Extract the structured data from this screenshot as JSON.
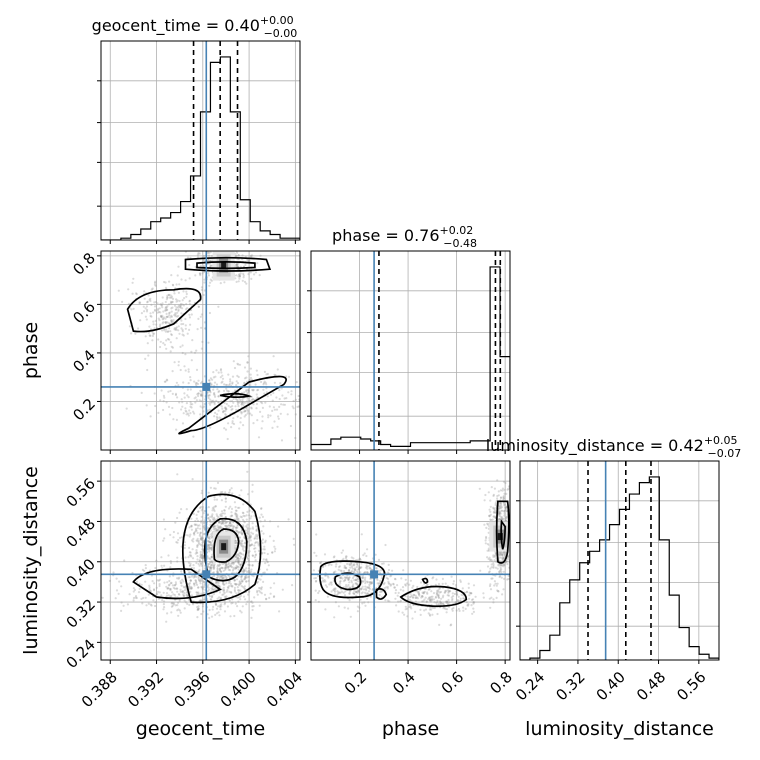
{
  "chart_data": {
    "type": "corner",
    "parameters": [
      {
        "name": "geocent_time",
        "label": "geocent_time",
        "range": [
          0.3872,
          0.4044
        ],
        "ticks": [
          0.388,
          0.392,
          0.396,
          0.4,
          0.404
        ],
        "tick_labels": [
          "0.388",
          "0.392",
          "0.396",
          "0.400",
          "0.404"
        ],
        "truth": 0.3963,
        "quantiles": [
          0.3952,
          0.3975,
          0.399
        ],
        "title": {
          "prefix": "geocent_time = 0.40",
          "plus": "+0.00",
          "minus": "−0.00"
        },
        "histogram": [
          0,
          0,
          0.01,
          0.03,
          0.06,
          0.1,
          0.12,
          0.15,
          0.21,
          0.35,
          0.7,
          0.97,
          1.0,
          0.7,
          0.22,
          0.1,
          0.05,
          0.03,
          0.01,
          0.01
        ]
      },
      {
        "name": "phase",
        "label": "phase",
        "range": [
          0.0,
          0.82
        ],
        "ticks": [
          0.2,
          0.4,
          0.6,
          0.8
        ],
        "tick_labels": [
          "0.2",
          "0.4",
          "0.6",
          "0.8"
        ],
        "truth": 0.26,
        "quantiles": [
          0.28,
          0.76,
          0.78
        ],
        "title": {
          "prefix": "phase = 0.76",
          "plus": "+0.02",
          "minus": "−0.48"
        },
        "histogram": [
          0.03,
          0.03,
          0.06,
          0.07,
          0.07,
          0.06,
          0.05,
          0.03,
          0.02,
          0.02,
          0.04,
          0.04,
          0.04,
          0.04,
          0.04,
          0.04,
          0.05,
          0.05,
          1.0,
          0.51
        ]
      },
      {
        "name": "luminosity_distance",
        "label": "luminosity_distance",
        "range": [
          0.205,
          0.6
        ],
        "ticks": [
          0.24,
          0.32,
          0.4,
          0.48,
          0.56
        ],
        "tick_labels": [
          "0.24",
          "0.32",
          "0.40",
          "0.48",
          "0.56"
        ],
        "truth": 0.375,
        "quantiles": [
          0.34,
          0.415,
          0.465
        ],
        "title": {
          "prefix": "luminosity_distance = 0.42",
          "plus": "+0.05",
          "minus": "−0.07"
        },
        "histogram": [
          0,
          0.01,
          0.05,
          0.13,
          0.3,
          0.42,
          0.51,
          0.57,
          0.63,
          0.71,
          0.79,
          0.87,
          0.93,
          0.96,
          0.63,
          0.34,
          0.17,
          0.07,
          0.03,
          0.01
        ]
      }
    ],
    "truth_color": "#4682b4",
    "scatter_color": "#999999",
    "contour_color": "#000000",
    "grid": true
  }
}
